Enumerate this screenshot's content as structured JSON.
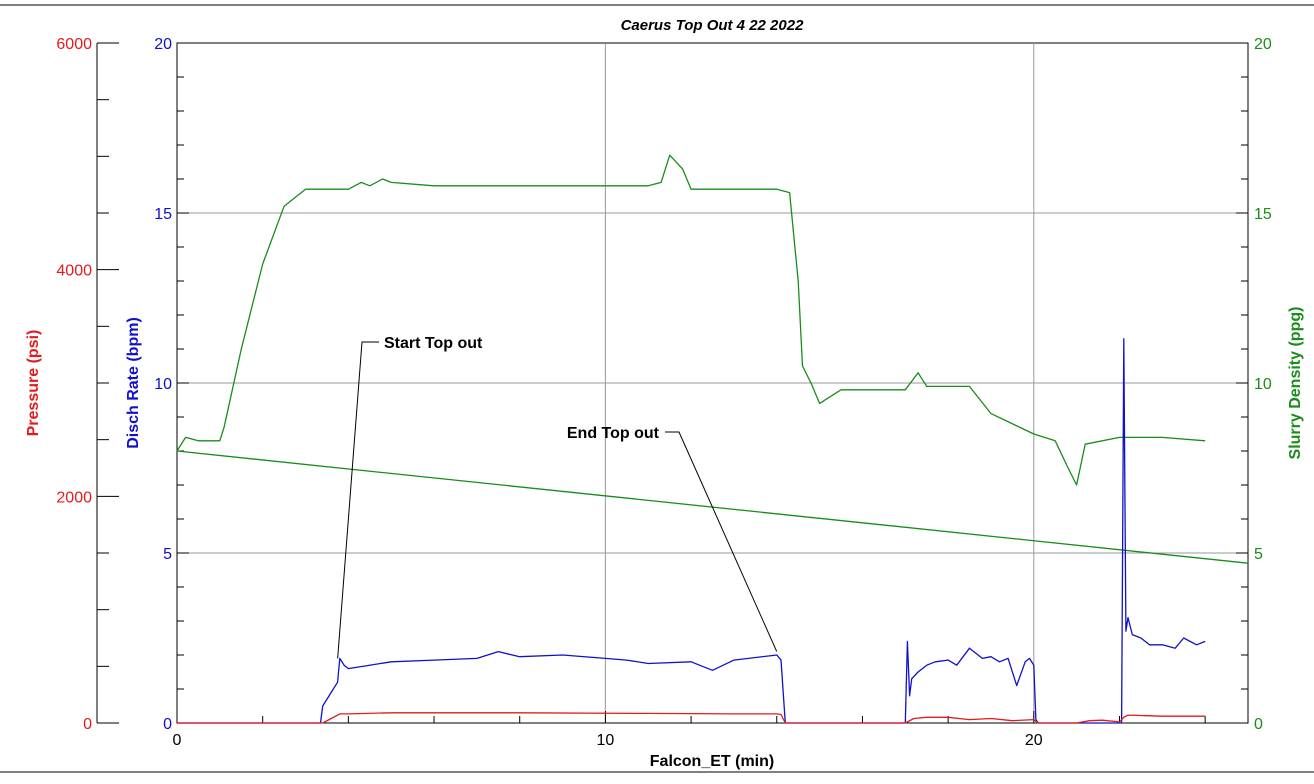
{
  "chart_data": {
    "type": "line",
    "title": "Caerus Top Out 4 22 2022",
    "xlabel": "Falcon_ET (min)",
    "xlim": [
      0,
      25
    ],
    "x_ticks": [
      "0",
      "10",
      "20"
    ],
    "x_tick_values": [
      0,
      10,
      20
    ],
    "grid": true,
    "axes": [
      {
        "id": "pressure",
        "label": "Pressure (psi)",
        "color": "#e41a1c",
        "ylim": [
          0,
          6000
        ],
        "ticks": [
          "0",
          "2000",
          "4000",
          "6000"
        ],
        "tick_values": [
          0,
          2000,
          4000,
          6000
        ]
      },
      {
        "id": "rate",
        "label": "Disch Rate (bpm)",
        "color": "#1111cc",
        "ylim": [
          0,
          20
        ],
        "ticks": [
          "0",
          "5",
          "10",
          "15",
          "20"
        ],
        "tick_values": [
          0,
          5,
          10,
          15,
          20
        ]
      },
      {
        "id": "density",
        "label": "Slurry Density (ppg)",
        "color": "#1a8c1a",
        "ylim": [
          0,
          20
        ],
        "ticks": [
          "0",
          "5",
          "10",
          "15",
          "20"
        ],
        "tick_values": [
          0,
          5,
          10,
          15,
          20
        ]
      }
    ],
    "series": [
      {
        "axis": "density",
        "color": "#1a8c1a",
        "x": [
          0,
          0.2,
          0.5,
          1.0,
          1.1,
          1.5,
          2.0,
          2.5,
          2.8,
          3.0,
          3.5,
          4.0,
          4.3,
          4.5,
          4.8,
          5.0,
          6.0,
          7.0,
          8.0,
          9.0,
          10.0,
          11.0,
          11.3,
          11.5,
          11.8,
          12.0,
          13.0,
          14.0,
          14.3,
          14.5,
          14.6,
          14.8,
          15.0,
          15.5,
          16.0,
          17.0,
          17.3,
          17.5,
          18.0,
          18.5,
          19.0,
          20.0,
          20.5,
          20.8,
          21.0,
          21.2,
          22.0,
          23.0,
          24.0
        ],
        "y": [
          8.0,
          8.4,
          8.3,
          8.3,
          8.7,
          11.0,
          13.5,
          15.2,
          15.5,
          15.7,
          15.7,
          15.7,
          15.9,
          15.8,
          16.0,
          15.9,
          15.8,
          15.8,
          15.8,
          15.8,
          15.8,
          15.8,
          15.9,
          16.7,
          16.3,
          15.7,
          15.7,
          15.7,
          15.6,
          13.0,
          10.5,
          10.0,
          9.4,
          9.8,
          9.8,
          9.8,
          10.3,
          9.9,
          9.9,
          9.9,
          9.1,
          8.5,
          8.3,
          7.5,
          7.0,
          8.2,
          8.4,
          8.4,
          8.3
        ]
      },
      {
        "axis": "density",
        "color": "#1a8c1a",
        "x": [
          0,
          25
        ],
        "y": [
          8.0,
          4.7
        ]
      },
      {
        "axis": "rate",
        "color": "#1111cc",
        "x": [
          0,
          3.35,
          3.4,
          3.6,
          3.75,
          3.8,
          3.9,
          4.0,
          5.0,
          6.0,
          7.0,
          7.5,
          8.0,
          9.0,
          10.0,
          10.5,
          11.0,
          12.0,
          12.5,
          13.0,
          14.0,
          14.1,
          14.2,
          17.0,
          17.05,
          17.1,
          17.15,
          17.3,
          17.5,
          17.7,
          18.0,
          18.2,
          18.5,
          18.8,
          19.0,
          19.2,
          19.4,
          19.6,
          19.8,
          19.9,
          20.0,
          20.05,
          20.1,
          22.05,
          22.1,
          22.15,
          22.2,
          22.3,
          22.5,
          22.7,
          23.0,
          23.3,
          23.5,
          23.8,
          24.0
        ],
        "y": [
          0,
          0,
          0.5,
          0.9,
          1.2,
          1.9,
          1.7,
          1.6,
          1.8,
          1.85,
          1.9,
          2.1,
          1.95,
          2.0,
          1.9,
          1.85,
          1.75,
          1.8,
          1.55,
          1.85,
          2.0,
          1.85,
          0,
          0,
          2.4,
          0.8,
          1.3,
          1.5,
          1.7,
          1.8,
          1.85,
          1.7,
          2.2,
          1.9,
          1.95,
          1.8,
          1.9,
          1.1,
          1.8,
          1.9,
          1.7,
          0.1,
          0,
          0,
          11.3,
          2.7,
          3.1,
          2.6,
          2.5,
          2.3,
          2.3,
          2.2,
          2.5,
          2.3,
          2.4
        ]
      },
      {
        "axis": "pressure",
        "color": "#e41a1c",
        "x": [
          0,
          3.4,
          3.6,
          3.8,
          4.0,
          5.0,
          8.0,
          11.0,
          13.0,
          14.0,
          14.1,
          14.2,
          17.0,
          17.2,
          17.5,
          18.0,
          18.5,
          19.0,
          19.5,
          20.0,
          20.1,
          21.0,
          21.3,
          21.6,
          22.0,
          22.1,
          22.2,
          23.0,
          24.0
        ],
        "y": [
          0,
          0,
          40,
          80,
          80,
          90,
          90,
          85,
          80,
          80,
          75,
          0,
          0,
          40,
          50,
          50,
          30,
          40,
          20,
          30,
          0,
          0,
          20,
          25,
          10,
          50,
          70,
          60,
          60
        ]
      }
    ],
    "annotations": [
      {
        "text": "Start Top out",
        "x": 3.75,
        "y": 1.9
      },
      {
        "text": "End Top out",
        "x": 14.0,
        "y": 2.1
      }
    ]
  }
}
